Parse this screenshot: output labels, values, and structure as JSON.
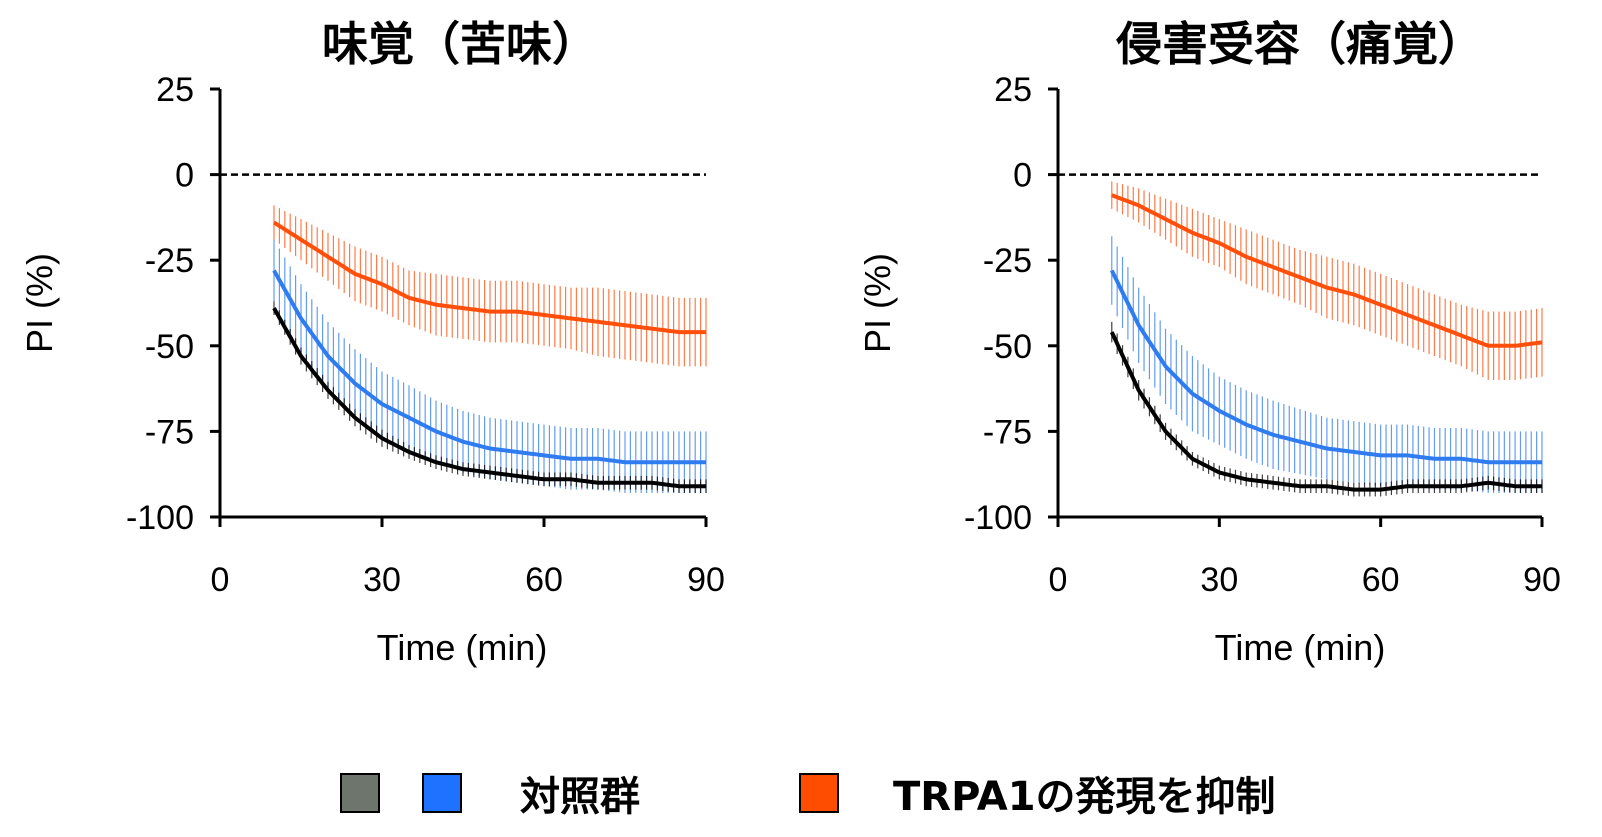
{
  "colors": {
    "control_black": "#000000",
    "control_blue": "#2f7bf0",
    "trpa1": "#ff4f0a",
    "legend_gray": "#6e756c",
    "legend_blue": "#1f72ff",
    "legend_orange": "#ff4d00"
  },
  "legend": {
    "control_label": "対照群",
    "trpa1_label": "TRPA1の発現を抑制"
  },
  "chart_data": [
    {
      "type": "line",
      "title": "味覚（苦味）",
      "xlabel": "Time (min)",
      "ylabel": "PI (%)",
      "xlim": [
        0,
        90
      ],
      "ylim": [
        -100,
        25
      ],
      "xticks": [
        "0",
        "30",
        "60",
        "90"
      ],
      "yticks": [
        "25",
        "0",
        "-25",
        "-50",
        "-75",
        "-100"
      ],
      "reference_line": 0,
      "x": [
        10,
        15,
        20,
        25,
        30,
        35,
        40,
        45,
        50,
        55,
        60,
        65,
        70,
        75,
        80,
        85,
        90
      ],
      "series": [
        {
          "color_key": "control_black",
          "values": [
            -39,
            -53,
            -63,
            -71,
            -77,
            -81,
            -84,
            -86,
            -87,
            -88,
            -89,
            -89,
            -90,
            -90,
            -90,
            -91,
            -91
          ],
          "error": [
            2,
            2.5,
            2.5,
            2.5,
            2.5,
            2,
            2,
            2,
            2,
            2,
            2,
            2,
            2,
            2,
            2,
            2,
            2
          ]
        },
        {
          "color_key": "control_blue",
          "values": [
            -28,
            -42,
            -53,
            -61,
            -67,
            -71,
            -75,
            -78,
            -80,
            -81,
            -82,
            -83,
            -83,
            -84,
            -84,
            -84,
            -84
          ],
          "error": [
            9,
            10,
            10,
            10,
            9.5,
            9.5,
            9,
            9,
            9,
            9,
            9,
            9,
            9,
            9,
            9,
            9,
            9
          ]
        },
        {
          "color_key": "trpa1",
          "values": [
            -14,
            -19,
            -24,
            -29,
            -32,
            -36,
            -38,
            -39,
            -40,
            -40,
            -41,
            -42,
            -43,
            -44,
            -45,
            -46,
            -46
          ],
          "error": [
            5,
            6,
            7,
            8,
            8,
            8,
            9,
            9,
            9,
            9,
            9,
            9,
            10,
            10,
            10,
            10,
            10
          ]
        }
      ]
    },
    {
      "type": "line",
      "title": "侵害受容（痛覚）",
      "xlabel": "Time (min)",
      "ylabel": "PI (%)",
      "xlim": [
        0,
        90
      ],
      "ylim": [
        -100,
        25
      ],
      "xticks": [
        "0",
        "30",
        "60",
        "90"
      ],
      "yticks": [
        "25",
        "0",
        "-25",
        "-50",
        "-75",
        "-100"
      ],
      "reference_line": 0,
      "x": [
        10,
        15,
        20,
        25,
        30,
        35,
        40,
        45,
        50,
        55,
        60,
        65,
        70,
        75,
        80,
        85,
        90
      ],
      "series": [
        {
          "color_key": "control_black",
          "values": [
            -46,
            -63,
            -75,
            -83,
            -87,
            -89,
            -90,
            -91,
            -91,
            -92,
            -92,
            -91,
            -91,
            -91,
            -90,
            -91,
            -91
          ],
          "error": [
            3,
            3,
            2.5,
            2,
            2,
            2,
            2,
            2,
            2,
            2,
            2,
            2,
            2,
            2,
            2,
            2,
            2
          ]
        },
        {
          "color_key": "control_blue",
          "values": [
            -28,
            -44,
            -56,
            -64,
            -69,
            -73,
            -76,
            -78,
            -80,
            -81,
            -82,
            -82,
            -83,
            -83,
            -84,
            -84,
            -84
          ],
          "error": [
            10,
            11,
            11,
            11,
            10,
            10,
            10,
            9.5,
            9,
            9,
            9,
            9,
            9,
            9,
            9,
            9,
            9
          ]
        },
        {
          "color_key": "trpa1",
          "values": [
            -6,
            -9,
            -13,
            -17,
            -20,
            -24,
            -27,
            -30,
            -33,
            -35,
            -38,
            -41,
            -44,
            -47,
            -50,
            -50,
            -49
          ],
          "error": [
            4,
            5,
            6,
            7,
            7,
            8,
            8,
            8,
            9,
            9,
            9,
            9,
            9,
            9,
            10,
            10,
            10
          ]
        }
      ]
    }
  ]
}
